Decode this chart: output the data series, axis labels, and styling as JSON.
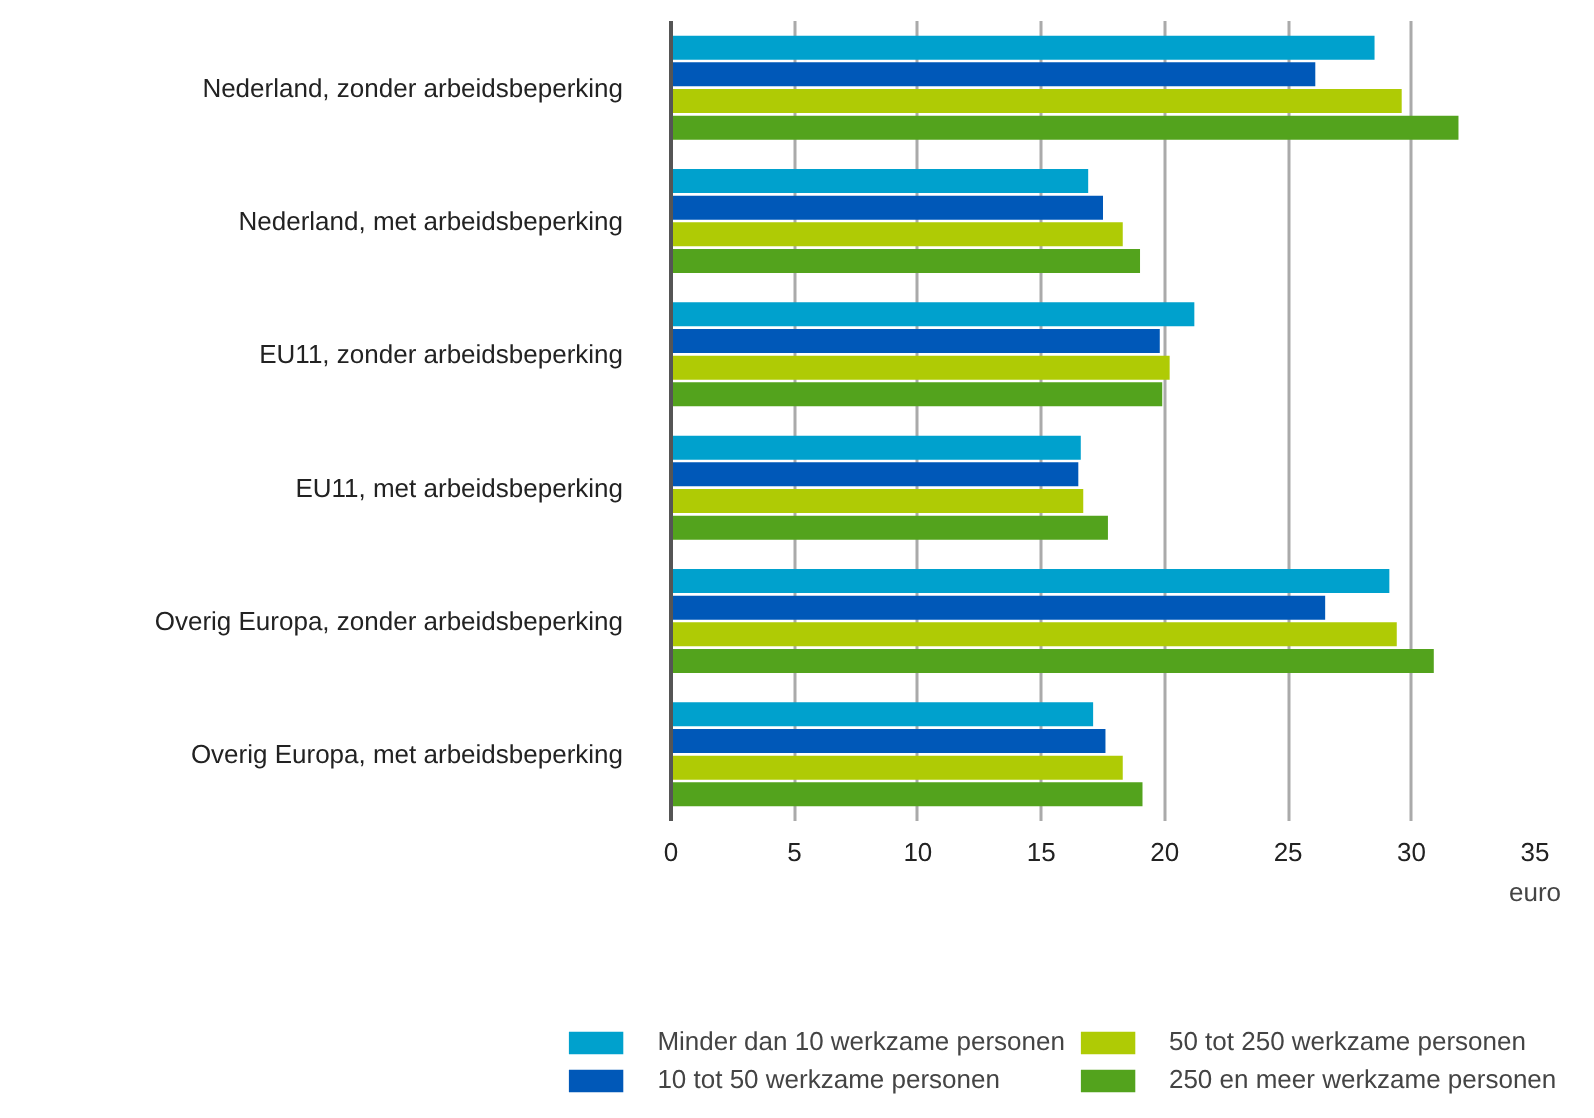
{
  "chart_data": {
    "type": "bar",
    "orientation": "horizontal",
    "xlabel": "euro",
    "categories": [
      "Nederland, zonder arbeidsbeperking",
      "Nederland, met arbeidsbeperking",
      "EU11, zonder arbeidsbeperking",
      "EU11, met arbeidsbeperking",
      "Overig Europa, zonder arbeidsbeperking",
      "Overig Europa, met arbeidsbeperking"
    ],
    "series": [
      {
        "name": "Minder dan 10 werkzame personen",
        "color": "#00a1cd",
        "values": [
          28.5,
          16.9,
          21.2,
          16.6,
          29.1,
          17.1
        ]
      },
      {
        "name": "10 tot 50 werkzame personen",
        "color": "#0058b8",
        "values": [
          26.1,
          17.5,
          19.8,
          16.5,
          26.5,
          17.6
        ]
      },
      {
        "name": "50 tot 250 werkzame personen",
        "color": "#afcb05",
        "values": [
          29.6,
          18.3,
          20.2,
          16.7,
          29.4,
          18.3
        ]
      },
      {
        "name": "250 en meer werkzame personen",
        "color": "#53a31d",
        "values": [
          31.9,
          19.0,
          19.9,
          17.7,
          30.9,
          19.1
        ]
      }
    ],
    "xlim": [
      0,
      35
    ],
    "xticks": [
      0,
      5,
      10,
      15,
      20,
      25,
      30,
      35
    ],
    "grid": "x",
    "legend": "bottom"
  }
}
